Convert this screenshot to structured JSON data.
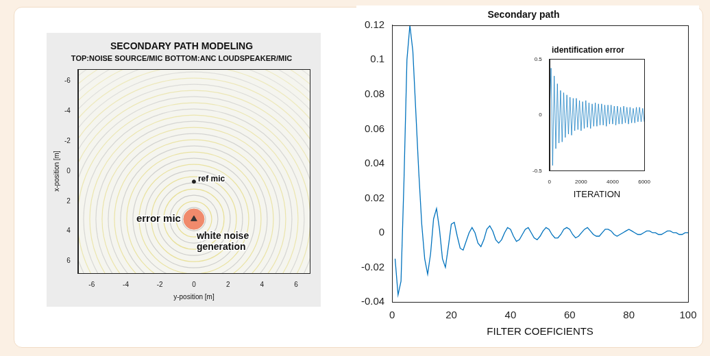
{
  "chart_data": [
    {
      "type": "scatter",
      "title": "SECONDARY PATH MODELING",
      "subtitle": "TOP:NOISE SOURCE/MIC BOTTOM:ANC LOUDSPEAKER/MIC",
      "xlabel": "y-position [m]",
      "ylabel": "x-position [m]",
      "xlim": [
        -6.8,
        6.8
      ],
      "ylim": [
        6.8,
        -6.8
      ],
      "xticks": [
        -6,
        -4,
        -2,
        0,
        2,
        4,
        6
      ],
      "yticks": [
        -6,
        -4,
        -2,
        0,
        2,
        4,
        6
      ],
      "grid": false,
      "series": [
        {
          "name": "ref mic",
          "color": "#222222",
          "marker": "dot",
          "x": [
            0
          ],
          "values": [
            0.7
          ]
        },
        {
          "name": "error mic",
          "color": "#333333",
          "marker": "triangle",
          "x": [
            0
          ],
          "values": [
            3.2
          ]
        },
        {
          "name": "white noise generation",
          "color": "#f08a6c",
          "marker": "circle",
          "x": [
            0
          ],
          "values": [
            3.2
          ]
        }
      ]
    },
    {
      "type": "line",
      "title": "Secondary path",
      "xlabel": "FILTER COEFICIENTS",
      "xlim": [
        0,
        100
      ],
      "ylim": [
        -0.04,
        0.12
      ],
      "xticks": [
        0,
        20,
        40,
        60,
        80,
        100
      ],
      "yticks": [
        -0.04,
        -0.02,
        0,
        0.02,
        0.04,
        0.06,
        0.08,
        0.1,
        0.12
      ],
      "grid": false,
      "color": "#0072bd",
      "x": [
        1,
        2,
        3,
        4,
        5,
        6,
        7,
        8,
        9,
        10,
        11,
        12,
        13,
        14,
        15,
        16,
        17,
        18,
        19,
        20,
        21,
        22,
        23,
        24,
        25,
        26,
        27,
        28,
        29,
        30,
        31,
        32,
        33,
        34,
        35,
        36,
        37,
        38,
        39,
        40,
        41,
        42,
        43,
        44,
        45,
        46,
        47,
        48,
        49,
        50,
        51,
        52,
        53,
        54,
        55,
        56,
        57,
        58,
        59,
        60,
        61,
        62,
        63,
        64,
        65,
        66,
        67,
        68,
        69,
        70,
        71,
        72,
        73,
        74,
        75,
        76,
        77,
        78,
        79,
        80,
        81,
        82,
        83,
        84,
        85,
        86,
        87,
        88,
        89,
        90,
        91,
        92,
        93,
        94,
        95,
        96,
        97,
        98,
        99,
        100
      ],
      "values": [
        -0.015,
        -0.036,
        -0.028,
        0.03,
        0.1,
        0.12,
        0.105,
        0.07,
        0.035,
        0.005,
        -0.015,
        -0.024,
        -0.012,
        0.008,
        0.014,
        0.002,
        -0.015,
        -0.02,
        -0.008,
        0.005,
        0.006,
        -0.002,
        -0.009,
        -0.01,
        -0.005,
        0,
        0.003,
        0,
        -0.006,
        -0.008,
        -0.004,
        0.002,
        0.004,
        0.001,
        -0.004,
        -0.006,
        -0.004,
        0,
        0.003,
        0.002,
        -0.002,
        -0.005,
        -0.004,
        -0.001,
        0.002,
        0.003,
        0,
        -0.003,
        -0.004,
        -0.002,
        0.001,
        0.003,
        0.002,
        -0.001,
        -0.003,
        -0.003,
        -0.001,
        0.002,
        0.003,
        0.002,
        -0.001,
        -0.003,
        -0.002,
        0,
        0.002,
        0.003,
        0.001,
        -0.001,
        -0.002,
        -0.002,
        0,
        0.002,
        0.002,
        0.001,
        -0.001,
        -0.002,
        -0.001,
        0,
        0.001,
        0.002,
        0.001,
        0,
        -0.001,
        -0.001,
        0,
        0.001,
        0.001,
        0,
        0,
        -0.001,
        -0.001,
        0,
        0.001,
        0.001,
        0,
        0,
        -0.001,
        -0.001,
        0,
        0
      ]
    },
    {
      "type": "line",
      "title": "identification error",
      "xlabel": "ITERATION",
      "xlim": [
        0,
        6000
      ],
      "ylim": [
        -0.5,
        0.5
      ],
      "xticks": [
        0,
        2000,
        4000,
        6000
      ],
      "yticks": [
        -0.5,
        0,
        0.5
      ],
      "grid": false,
      "color": "#0072bd",
      "x": [
        0,
        100,
        200,
        300,
        400,
        500,
        600,
        700,
        800,
        900,
        1000,
        1100,
        1200,
        1300,
        1400,
        1500,
        1600,
        1700,
        1800,
        1900,
        2000,
        2100,
        2200,
        2300,
        2400,
        2500,
        2600,
        2700,
        2800,
        2900,
        3000,
        3100,
        3200,
        3300,
        3400,
        3500,
        3600,
        3700,
        3800,
        3900,
        4000,
        4100,
        4200,
        4300,
        4400,
        4500,
        4600,
        4700,
        4800,
        4900,
        5000,
        5100,
        5200,
        5300,
        5400,
        5500,
        5600,
        5700,
        5800,
        5900,
        6000
      ],
      "values": [
        0,
        0.42,
        -0.45,
        0.35,
        -0.3,
        0.28,
        -0.25,
        0.22,
        -0.24,
        0.2,
        -0.2,
        0.18,
        -0.17,
        0.16,
        -0.18,
        0.15,
        -0.14,
        0.15,
        -0.13,
        0.13,
        -0.14,
        0.12,
        -0.12,
        0.13,
        -0.11,
        0.11,
        -0.12,
        0.1,
        -0.1,
        0.11,
        -0.1,
        0.1,
        -0.09,
        0.1,
        -0.09,
        0.09,
        -0.1,
        0.09,
        -0.08,
        0.09,
        -0.08,
        0.08,
        -0.09,
        0.08,
        -0.08,
        0.07,
        -0.08,
        0.08,
        -0.07,
        0.07,
        -0.08,
        0.07,
        -0.07,
        0.06,
        -0.07,
        0.07,
        -0.06,
        0.07,
        -0.06,
        0.06,
        -0.06
      ]
    }
  ]
}
